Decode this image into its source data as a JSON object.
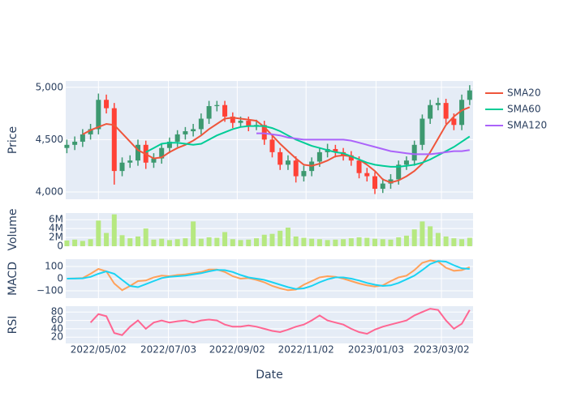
{
  "chart_data": {
    "type": "candlestick",
    "xlabel": "Date",
    "ylabel": "Price",
    "grid": true,
    "legend": "right",
    "increasing_color": "#3d9970",
    "decreasing_color": "#ff4136",
    "xlim": [
      "2022/04/03",
      "2023/03/30"
    ],
    "xticks": [
      "2022/05/02",
      "2022/07/03",
      "2022/09/02",
      "2022/11/02",
      "2023/01/03",
      "2023/03/02"
    ],
    "ylim": [
      3930,
      5060
    ],
    "yticks": [
      {
        "value": 4000,
        "label": "4,000"
      },
      {
        "value": 4500,
        "label": "4,500"
      },
      {
        "value": 5000,
        "label": "5,000"
      }
    ],
    "x": [
      "2022/04/04",
      "2022/04/11",
      "2022/04/18",
      "2022/04/25",
      "2022/05/02",
      "2022/05/09",
      "2022/05/16",
      "2022/05/23",
      "2022/05/30",
      "2022/06/06",
      "2022/06/13",
      "2022/06/20",
      "2022/06/27",
      "2022/07/04",
      "2022/07/11",
      "2022/07/18",
      "2022/07/25",
      "2022/08/01",
      "2022/08/08",
      "2022/08/15",
      "2022/08/22",
      "2022/08/29",
      "2022/09/05",
      "2022/09/12",
      "2022/09/19",
      "2022/09/26",
      "2022/10/03",
      "2022/10/10",
      "2022/10/17",
      "2022/10/24",
      "2022/10/31",
      "2022/11/07",
      "2022/11/14",
      "2022/11/21",
      "2022/11/28",
      "2022/12/05",
      "2022/12/12",
      "2022/12/19",
      "2022/12/26",
      "2023/01/02",
      "2023/01/09",
      "2023/01/16",
      "2023/01/23",
      "2023/01/30",
      "2023/02/06",
      "2023/02/13",
      "2023/02/20",
      "2023/02/27",
      "2023/03/06",
      "2023/03/13",
      "2023/03/20",
      "2023/03/27"
    ],
    "open": [
      4420,
      4450,
      4480,
      4550,
      4600,
      4880,
      4800,
      4200,
      4280,
      4300,
      4450,
      4280,
      4320,
      4420,
      4480,
      4550,
      4580,
      4600,
      4700,
      4820,
      4830,
      4720,
      4660,
      4680,
      4630,
      4640,
      4500,
      4380,
      4260,
      4300,
      4150,
      4200,
      4290,
      4380,
      4410,
      4380,
      4350,
      4300,
      4180,
      4150,
      4030,
      4080,
      4120,
      4260,
      4300,
      4450,
      4700,
      4830,
      4850,
      4700,
      4640,
      4880
    ],
    "high": [
      4500,
      4530,
      4600,
      4650,
      4940,
      4930,
      4850,
      4330,
      4350,
      4500,
      4490,
      4370,
      4460,
      4520,
      4590,
      4620,
      4650,
      4750,
      4870,
      4870,
      4870,
      4760,
      4720,
      4720,
      4690,
      4680,
      4540,
      4420,
      4350,
      4340,
      4250,
      4330,
      4420,
      4460,
      4450,
      4420,
      4390,
      4340,
      4230,
      4190,
      4130,
      4170,
      4300,
      4340,
      4490,
      4740,
      4880,
      4900,
      4890,
      4750,
      4930,
      5020
    ],
    "low": [
      4370,
      4400,
      4430,
      4500,
      4550,
      4750,
      4070,
      4150,
      4230,
      4250,
      4220,
      4230,
      4270,
      4370,
      4430,
      4500,
      4530,
      4550,
      4650,
      4770,
      4670,
      4610,
      4620,
      4580,
      4590,
      4450,
      4330,
      4210,
      4210,
      4090,
      4100,
      4150,
      4240,
      4330,
      4330,
      4300,
      4250,
      4130,
      4100,
      3980,
      3990,
      4030,
      4070,
      4210,
      4250,
      4400,
      4650,
      4780,
      4650,
      4590,
      4590,
      4830
    ],
    "close": [
      4450,
      4480,
      4550,
      4600,
      4880,
      4800,
      4200,
      4280,
      4300,
      4450,
      4280,
      4320,
      4420,
      4480,
      4550,
      4580,
      4600,
      4700,
      4820,
      4830,
      4720,
      4660,
      4680,
      4630,
      4640,
      4500,
      4380,
      4260,
      4300,
      4150,
      4200,
      4290,
      4380,
      4410,
      4380,
      4350,
      4300,
      4180,
      4150,
      4030,
      4080,
      4120,
      4260,
      4300,
      4450,
      4700,
      4830,
      4850,
      4700,
      4640,
      4880,
      4970
    ],
    "series": [
      {
        "name": "SMA20",
        "color": "#ef553b",
        "values": [
          null,
          null,
          4550,
          4590,
          4620,
          4650,
          4640,
          4560,
          4480,
          4400,
          4360,
          4320,
          4330,
          4380,
          4420,
          4450,
          4490,
          4540,
          4600,
          4650,
          4700,
          4710,
          4700,
          4690,
          4680,
          4620,
          4540,
          4460,
          4390,
          4320,
          4260,
          4250,
          4270,
          4300,
          4340,
          4350,
          4340,
          4310,
          4260,
          4200,
          4120,
          4090,
          4110,
          4150,
          4200,
          4270,
          4380,
          4510,
          4640,
          4720,
          4780,
          4810
        ]
      },
      {
        "name": "SMA60",
        "color": "#00cc96",
        "values": [
          null,
          null,
          null,
          null,
          null,
          null,
          null,
          null,
          null,
          null,
          4380,
          4420,
          4460,
          4470,
          4470,
          4460,
          4450,
          4460,
          4500,
          4540,
          4570,
          4600,
          4620,
          4630,
          4630,
          4630,
          4610,
          4580,
          4540,
          4500,
          4470,
          4440,
          4420,
          4400,
          4380,
          4370,
          4340,
          4310,
          4280,
          4260,
          4250,
          4240,
          4240,
          4250,
          4260,
          4280,
          4310,
          4350,
          4390,
          4430,
          4480,
          4530
        ]
      },
      {
        "name": "SMA120",
        "color": "#ab63fa",
        "values": [
          null,
          null,
          null,
          null,
          null,
          null,
          null,
          null,
          null,
          null,
          null,
          null,
          null,
          null,
          null,
          null,
          null,
          null,
          null,
          null,
          null,
          null,
          null,
          null,
          4560,
          4560,
          4550,
          4540,
          4520,
          4510,
          4500,
          4500,
          4500,
          4500,
          4500,
          4500,
          4490,
          4470,
          4450,
          4430,
          4410,
          4390,
          4380,
          4370,
          4360,
          4360,
          4360,
          4370,
          4380,
          4390,
          4390,
          4400
        ]
      }
    ],
    "panels": [
      {
        "type": "bar",
        "ylabel": "Volume",
        "color": "#b6e880",
        "ylim": [
          0,
          7500000
        ],
        "yticks": [
          0,
          {
            "value": 2000000,
            "label": "2M"
          },
          {
            "value": 4000000,
            "label": "4M"
          },
          {
            "value": 6000000,
            "label": "6M"
          }
        ],
        "values": [
          1300000,
          1500000,
          1200000,
          1600000,
          5800000,
          3000000,
          7200000,
          2500000,
          1800000,
          2200000,
          4000000,
          1500000,
          1700000,
          1400000,
          1600000,
          1800000,
          5600000,
          1700000,
          2000000,
          1900000,
          3200000,
          1600000,
          1400000,
          1500000,
          1800000,
          2600000,
          2800000,
          3500000,
          4200000,
          2200000,
          1900000,
          1700000,
          1600000,
          1400000,
          1500000,
          1600000,
          1800000,
          2000000,
          1900000,
          1700000,
          1600000,
          1500000,
          2000000,
          2400000,
          3800000,
          5600000,
          4500000,
          3000000,
          2200000,
          1800000,
          1600000,
          1900000
        ]
      },
      {
        "type": "line",
        "ylabel": "MACD",
        "ylim": [
          -160,
          160
        ],
        "yticks": [
          {
            "value": -100,
            "label": "−100"
          },
          0,
          100
        ],
        "series": [
          {
            "color": "#ffa15a",
            "values": [
              0,
              2,
              5,
              40,
              80,
              60,
              -40,
              -95,
              -60,
              -20,
              -15,
              10,
              25,
              20,
              30,
              35,
              45,
              55,
              75,
              75,
              55,
              20,
              0,
              5,
              -10,
              -30,
              -60,
              -80,
              -95,
              -90,
              -50,
              -20,
              10,
              20,
              15,
              0,
              -20,
              -40,
              -55,
              -65,
              -55,
              -20,
              10,
              25,
              70,
              130,
              150,
              140,
              90,
              65,
              70,
              95
            ]
          },
          {
            "color": "#19d3f3",
            "values": [
              0,
              1,
              3,
              15,
              40,
              60,
              40,
              -10,
              -60,
              -70,
              -45,
              -20,
              5,
              15,
              20,
              25,
              35,
              45,
              60,
              72,
              70,
              55,
              30,
              10,
              0,
              -10,
              -30,
              -50,
              -70,
              -85,
              -80,
              -60,
              -30,
              -5,
              10,
              10,
              0,
              -15,
              -35,
              -50,
              -60,
              -55,
              -35,
              -5,
              25,
              70,
              120,
              145,
              140,
              110,
              85,
              80
            ]
          }
        ]
      },
      {
        "type": "line",
        "ylabel": "RSI",
        "ylim": [
          5,
          94
        ],
        "yticks": [
          20,
          40,
          60,
          80
        ],
        "series": [
          {
            "color": "#ff6692",
            "values": [
              null,
              null,
              null,
              55,
              75,
              70,
              30,
              25,
              45,
              60,
              40,
              55,
              60,
              55,
              58,
              60,
              55,
              60,
              62,
              60,
              50,
              45,
              45,
              48,
              45,
              40,
              35,
              32,
              38,
              45,
              50,
              60,
              72,
              60,
              55,
              50,
              40,
              32,
              28,
              38,
              45,
              50,
              55,
              60,
              72,
              80,
              88,
              85,
              60,
              40,
              52,
              85
            ]
          }
        ]
      }
    ]
  }
}
